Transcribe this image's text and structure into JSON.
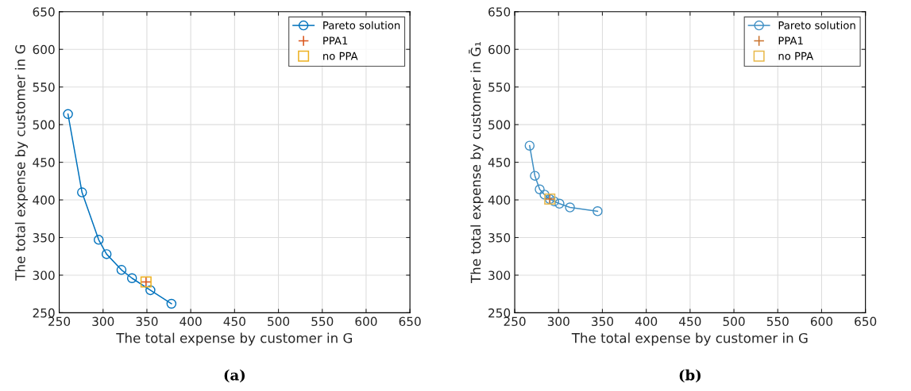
{
  "chart_data": [
    {
      "type": "line",
      "xlabel": "The total expense by customer in G",
      "ylabel": "The total expense by customer in G",
      "annotations": [
        "(a)"
      ],
      "xlim": [
        250,
        650
      ],
      "ylim": [
        250,
        650
      ],
      "xticks": [
        250,
        300,
        350,
        400,
        450,
        500,
        550,
        600,
        650
      ],
      "yticks": [
        250,
        300,
        350,
        400,
        450,
        500,
        550,
        600,
        650
      ],
      "grid": true,
      "legend": "top right",
      "series": [
        {
          "name": "Pareto solution",
          "color": "#0072bd",
          "marker": "circle",
          "line_style": "solid",
          "x": [
            260,
            276,
            295,
            304,
            321,
            333,
            354,
            378
          ],
          "values": [
            514,
            410,
            347,
            328,
            307,
            296,
            280,
            262
          ]
        },
        {
          "name": "PPA1",
          "type": "scatter",
          "color": "#d95319",
          "marker": "cross",
          "x": [
            349
          ],
          "values": [
            291
          ]
        },
        {
          "name": "no PPA",
          "type": "scatter",
          "color": "#edb120",
          "marker": "square",
          "x": [
            349
          ],
          "values": [
            291
          ]
        }
      ]
    },
    {
      "type": "line",
      "xlabel": "The total expense by customer in G",
      "ylabel": "The total expense by customer in Ḡ₁",
      "annotations": [
        "(b)"
      ],
      "xlim": [
        250,
        650
      ],
      "ylim": [
        250,
        650
      ],
      "xticks": [
        250,
        300,
        350,
        400,
        450,
        500,
        550,
        600,
        650
      ],
      "yticks": [
        250,
        300,
        350,
        400,
        450,
        500,
        550,
        600,
        650
      ],
      "grid": true,
      "legend": "top right",
      "series": [
        {
          "name": "Pareto solution",
          "color": "#3f8fc4",
          "marker": "circle",
          "line_style": "solid",
          "x": [
            267,
            273,
            278.5,
            284,
            290,
            295,
            301,
            313,
            344.5
          ],
          "values": [
            472,
            432,
            414,
            407,
            401,
            398,
            395,
            390,
            385
          ]
        },
        {
          "name": "PPA1",
          "type": "scatter",
          "color": "#c8702a",
          "marker": "cross",
          "x": [
            290
          ],
          "values": [
            401
          ]
        },
        {
          "name": "no PPA",
          "type": "scatter",
          "color": "#e8b84a",
          "marker": "square",
          "x": [
            290
          ],
          "values": [
            401
          ]
        }
      ]
    }
  ]
}
